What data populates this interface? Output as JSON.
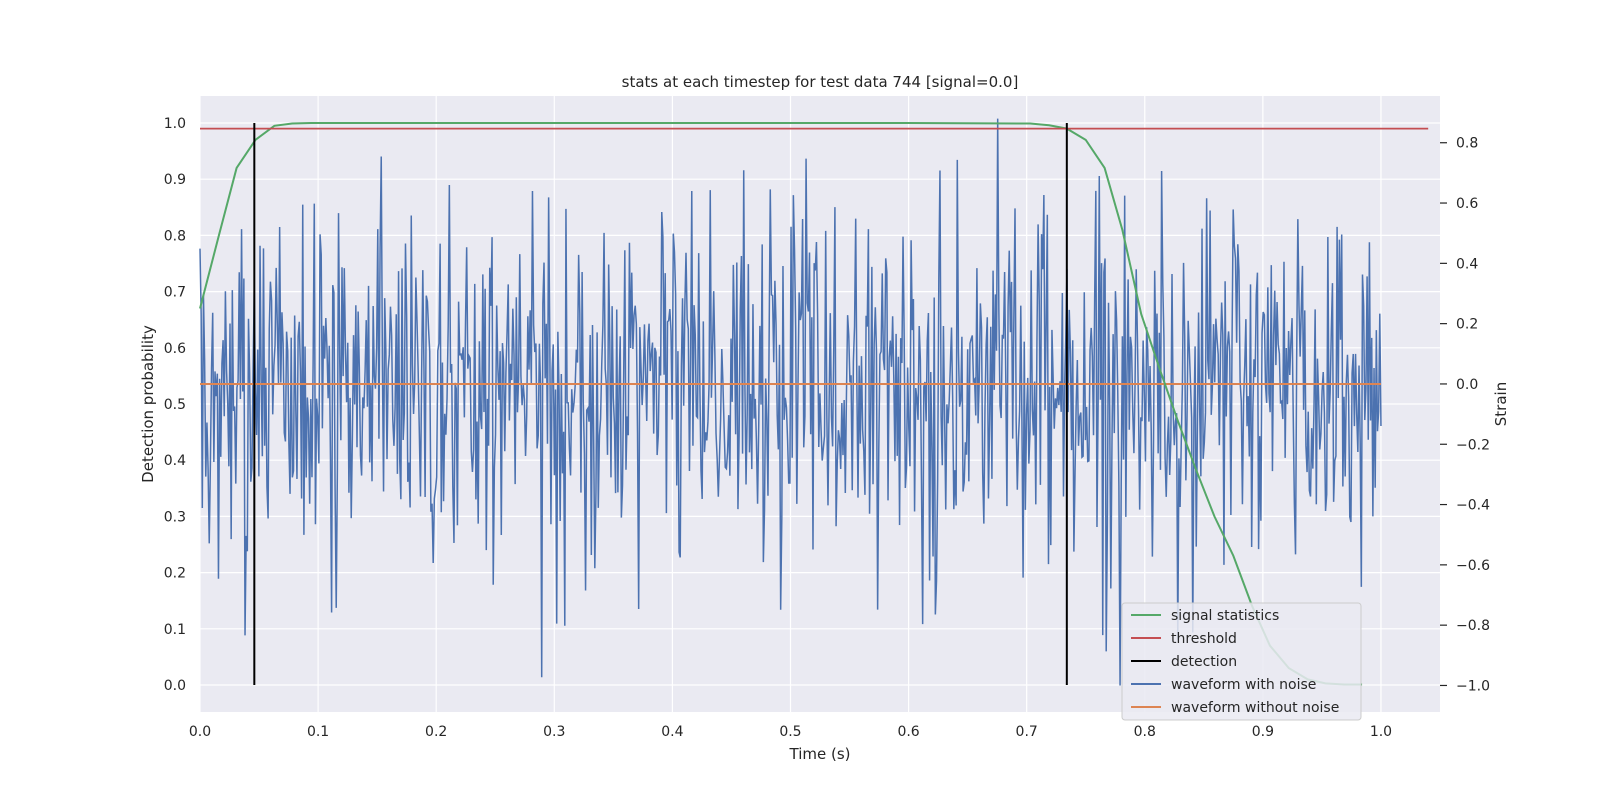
{
  "chart_data": {
    "type": "line",
    "title": "stats at each timestep for test data 744 [signal=0.0]",
    "xlabel": "Time (s)",
    "ylabel": "Detection probability",
    "y2label": "Strain",
    "xlim": [
      0.0,
      1.05
    ],
    "ylim": [
      -0.048,
      1.048
    ],
    "y2lim": [
      -1.088,
      0.955
    ],
    "x_ticks": [
      "0.0",
      "0.1",
      "0.2",
      "0.3",
      "0.4",
      "0.5",
      "0.6",
      "0.7",
      "0.8",
      "0.9",
      "1.0"
    ],
    "y_ticks": [
      "0.0",
      "0.1",
      "0.2",
      "0.3",
      "0.4",
      "0.5",
      "0.6",
      "0.7",
      "0.8",
      "0.9",
      "1.0"
    ],
    "y2_ticks": [
      "−1.0",
      "−0.8",
      "−0.6",
      "−0.4",
      "−0.2",
      "0.0",
      "0.2",
      "0.4",
      "0.6",
      "0.8"
    ],
    "grid": true,
    "legend_position": "lower-right",
    "colors": {
      "signal_statistics": "#55a868",
      "threshold": "#c44e52",
      "detection": "#000000",
      "waveform_with_noise": "#4c72b0",
      "waveform_without_noise": "#dd8452",
      "plot_background": "#eaeaf2",
      "grid": "#ffffff"
    },
    "series": [
      {
        "name": "signal statistics",
        "axis": "left",
        "x": [
          0.0,
          0.016,
          0.031,
          0.047,
          0.063,
          0.078,
          0.094,
          0.2,
          0.4,
          0.6,
          0.703,
          0.719,
          0.734,
          0.75,
          0.766,
          0.781,
          0.797,
          0.813,
          0.828,
          0.844,
          0.859,
          0.875,
          0.891,
          0.906,
          0.922,
          0.938,
          0.953,
          0.969,
          0.984
        ],
        "y": [
          0.67,
          0.8,
          0.92,
          0.97,
          0.995,
          0.999,
          1.0,
          1.0,
          1.0,
          1.0,
          0.999,
          0.996,
          0.99,
          0.97,
          0.92,
          0.81,
          0.66,
          0.56,
          0.47,
          0.38,
          0.3,
          0.23,
          0.14,
          0.07,
          0.03,
          0.01,
          0.003,
          0.001,
          0.001
        ]
      },
      {
        "name": "threshold",
        "axis": "left",
        "x": [
          0.0,
          1.04
        ],
        "y": [
          0.99,
          0.99
        ]
      },
      {
        "name": "detection",
        "axis": "left",
        "x_lines": [
          0.046,
          0.734
        ],
        "y": [
          0.0,
          1.0
        ]
      },
      {
        "name": "waveform with noise",
        "axis": "right",
        "x_range": [
          0.0,
          1.0
        ],
        "num_points": 1024,
        "approx_range": [
          -1.0,
          0.88
        ]
      },
      {
        "name": "waveform without noise",
        "axis": "right",
        "x": [
          0.0,
          1.0
        ],
        "y": [
          0.0,
          0.0
        ]
      }
    ]
  }
}
